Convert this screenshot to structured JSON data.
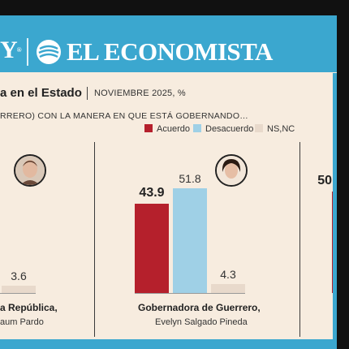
{
  "header": {
    "brand_left": "Y",
    "brand_left_mark": "®",
    "publication": "EL ECONOMISTA"
  },
  "title": {
    "text": "a en el Estado",
    "date": "NOVIEMBRE 2025, %",
    "question": "RRERO) CON LA MANERA EN QUE ESTÁ GOBERNANDO…"
  },
  "colors": {
    "acuerdo": "#b5202c",
    "desacuerdo": "#9fd0e6",
    "nsnc": "#e8d9cb",
    "band": "#3ba7cf"
  },
  "icons": [
    "globe-logo-icon",
    "portrait-icon"
  ],
  "chart_data": {
    "type": "bar",
    "series": [
      {
        "name": "Acuerdo",
        "values": [
          null,
          43.9,
          50
        ]
      },
      {
        "name": "Desacuerdo",
        "values": [
          null,
          51.8,
          null
        ]
      },
      {
        "name": "NS,NC",
        "values": [
          3.6,
          4.3,
          null
        ]
      }
    ],
    "groups": [
      {
        "title": "a República,",
        "name": "aum Pardo",
        "visible_labels": [
          "",
          "",
          "3.6"
        ]
      },
      {
        "title": "Gobernadora de Guerrero,",
        "name": "Evelyn Salgado Pineda",
        "visible_labels": [
          "43.9",
          "51.8",
          "4.3"
        ]
      },
      {
        "title": "",
        "name": "",
        "visible_labels": [
          "50",
          "",
          ""
        ]
      }
    ],
    "legend": [
      "Acuerdo",
      "Desacuerdo",
      "NS,NC"
    ],
    "legend_position": "top-right",
    "ylim": [
      0,
      60
    ],
    "grid": false
  }
}
